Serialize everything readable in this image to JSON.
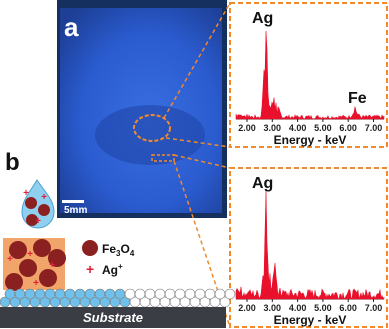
{
  "panel_a": {
    "label": "a",
    "scale_bar": "5mm"
  },
  "spectra": [
    {
      "peaks": [
        "Ag",
        "Fe"
      ],
      "x_ticks": [
        "2.00",
        "3.00",
        "4.00",
        "5.00",
        "6.00",
        "7.00"
      ],
      "x_label": "Energy - keV"
    },
    {
      "peaks": [
        "Ag"
      ],
      "x_ticks": [
        "2.00",
        "3.00",
        "4.00",
        "5.00",
        "6.00",
        "7.00"
      ],
      "x_label": "Energy - keV"
    }
  ],
  "panel_b": {
    "label": "b",
    "legend": {
      "particle": [
        "Fe",
        "3",
        "O",
        "4"
      ],
      "ion": [
        "Ag",
        "+"
      ]
    },
    "substrate": "Substrate"
  }
}
